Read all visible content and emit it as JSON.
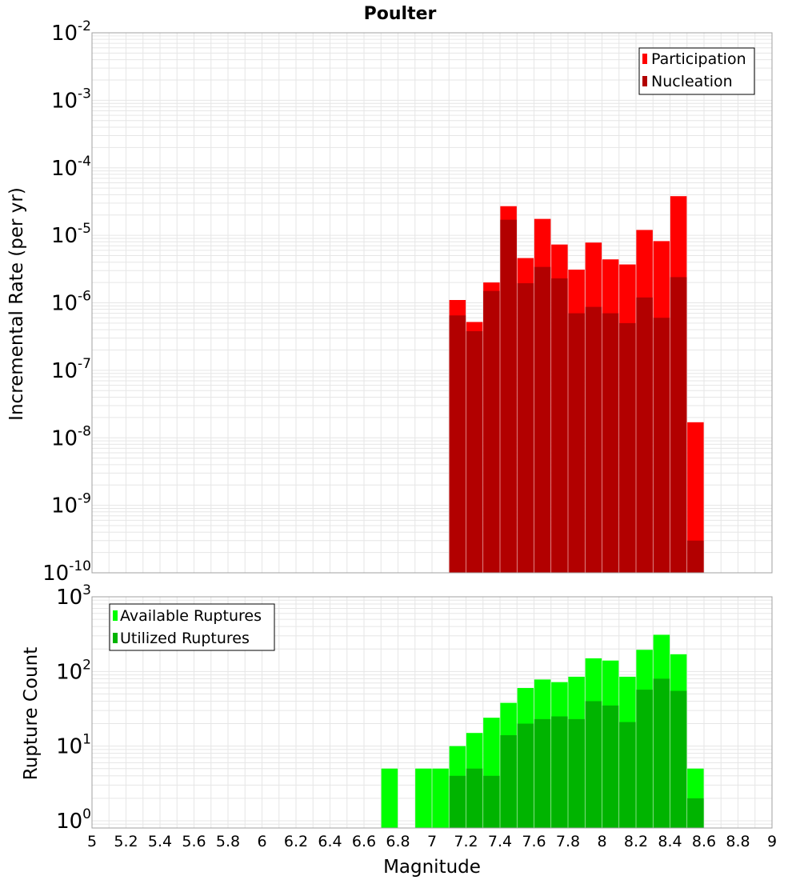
{
  "title": "Poulter",
  "colors": {
    "participation": "#ff0000",
    "nucleation": "#b20000",
    "available": "#00ff00",
    "utilized": "#00b400"
  },
  "chart_data": [
    {
      "type": "bar",
      "panel": "top",
      "title": "Poulter",
      "xlabel": "Magnitude",
      "ylabel": "Incremental Rate (per yr)",
      "yscale": "log",
      "ylim": [
        1e-10,
        0.01
      ],
      "xlim": [
        5,
        9
      ],
      "y_tick_exponents": [
        -10,
        -9,
        -8,
        -7,
        -6,
        -5,
        -4,
        -3,
        -2
      ],
      "legend": {
        "placement": "top-right",
        "entries": [
          "Participation",
          "Nucleation"
        ]
      },
      "x": [
        7.15,
        7.25,
        7.35,
        7.45,
        7.55,
        7.65,
        7.75,
        7.85,
        7.95,
        8.05,
        8.15,
        8.25,
        8.35,
        8.45,
        8.55
      ],
      "series": [
        {
          "name": "Participation",
          "values": [
            1.1e-06,
            5.2e-07,
            2e-06,
            2.7e-05,
            4.6e-06,
            1.75e-05,
            7.3e-06,
            3.1e-06,
            7.8e-06,
            4.4e-06,
            3.7e-06,
            1.2e-05,
            8.2e-06,
            3.8e-05,
            1.7e-08
          ]
        },
        {
          "name": "Nucleation",
          "values": [
            6.5e-07,
            3.8e-07,
            1.5e-06,
            1.7e-05,
            1.95e-06,
            3.4e-06,
            2.3e-06,
            7e-07,
            8.7e-07,
            7e-07,
            5e-07,
            1.2e-06,
            6e-07,
            2.4e-06,
            3e-10
          ]
        }
      ]
    },
    {
      "type": "bar",
      "panel": "bottom",
      "xlabel": "Magnitude",
      "ylabel": "Rupture Count",
      "yscale": "log",
      "ylim": [
        0.8,
        1000
      ],
      "xlim": [
        5,
        9
      ],
      "y_tick_exponents": [
        0,
        1,
        2,
        3
      ],
      "x_ticks": [
        "5",
        "5.2",
        "5.4",
        "5.6",
        "5.8",
        "6",
        "6.2",
        "6.4",
        "6.6",
        "6.8",
        "7",
        "7.2",
        "7.4",
        "7.6",
        "7.8",
        "8",
        "8.2",
        "8.4",
        "8.6",
        "8.8",
        "9"
      ],
      "legend": {
        "placement": "top-left",
        "entries": [
          "Available Ruptures",
          "Utilized Ruptures"
        ]
      },
      "x": [
        6.75,
        6.95,
        7.05,
        7.15,
        7.25,
        7.35,
        7.45,
        7.55,
        7.65,
        7.75,
        7.85,
        7.95,
        8.05,
        8.15,
        8.25,
        8.35,
        8.45,
        8.55
      ],
      "series": [
        {
          "name": "Available Ruptures",
          "values": [
            5,
            5,
            5,
            10,
            15,
            24,
            38,
            60,
            78,
            72,
            85,
            150,
            140,
            85,
            195,
            310,
            170,
            5
          ]
        },
        {
          "name": "Utilized Ruptures",
          "values": [
            0,
            0,
            0,
            4,
            5,
            4,
            14,
            20,
            23,
            25,
            23,
            40,
            35,
            21,
            57,
            80,
            55,
            2
          ]
        }
      ]
    }
  ]
}
